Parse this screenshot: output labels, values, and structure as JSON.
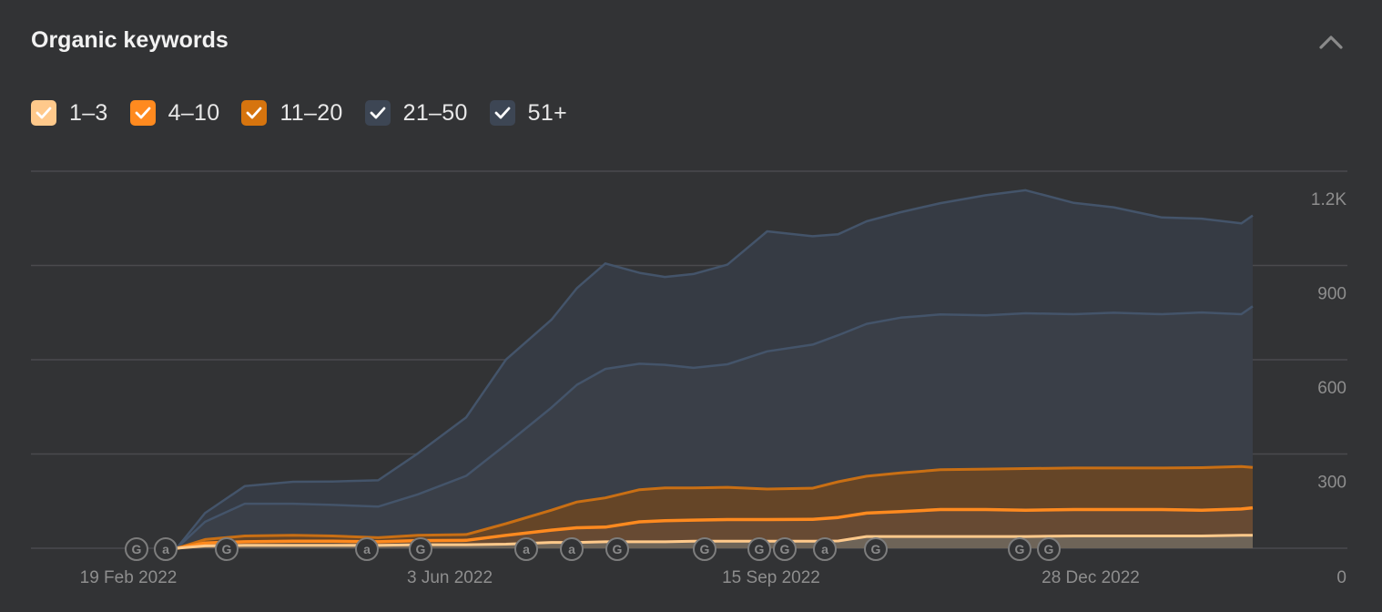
{
  "panel": {
    "title": "Organic keywords",
    "collapse_icon": "chevron-up-icon"
  },
  "legend": [
    {
      "label": "1–3",
      "color": "#ffc98b",
      "checked": true
    },
    {
      "label": "4–10",
      "color": "#ff8a1f",
      "checked": true
    },
    {
      "label": "11–20",
      "color": "#d6740e",
      "checked": true
    },
    {
      "label": "21–50",
      "color": "#3d4654",
      "checked": true
    },
    {
      "label": "51+",
      "color": "#3d4654",
      "checked": true
    }
  ],
  "chart_data": {
    "type": "area",
    "stacked": true,
    "x": [
      "2022-02-19",
      "2022-03-01",
      "2022-03-15",
      "2022-04-01",
      "2022-04-15",
      "2022-05-01",
      "2022-05-15",
      "2022-06-01",
      "2022-06-15",
      "2022-07-01",
      "2022-07-10",
      "2022-07-20",
      "2022-08-01",
      "2022-08-10",
      "2022-08-20",
      "2022-09-01",
      "2022-09-15",
      "2022-10-01",
      "2022-10-10",
      "2022-10-20",
      "2022-11-01",
      "2022-11-15",
      "2022-12-01",
      "2022-12-15",
      "2023-01-01",
      "2023-01-15",
      "2023-02-01",
      "2023-02-15",
      "2023-03-01",
      "2023-03-05"
    ],
    "series": [
      {
        "name": "1–3",
        "color": "#ffc98b",
        "values": [
          0,
          8,
          10,
          10,
          10,
          10,
          12,
          12,
          14,
          20,
          20,
          22,
          22,
          22,
          24,
          24,
          24,
          24,
          25,
          40,
          40,
          40,
          40,
          40,
          42,
          42,
          42,
          42,
          44,
          44
        ]
      },
      {
        "name": "4–10",
        "color": "#ff8a1f",
        "values": [
          0,
          10,
          12,
          14,
          14,
          12,
          14,
          15,
          30,
          42,
          50,
          50,
          68,
          72,
          72,
          74,
          74,
          75,
          80,
          80,
          85,
          92,
          92,
          90,
          90,
          90,
          90,
          88,
          90,
          94
        ]
      },
      {
        "name": "11–20",
        "color": "#d6740e",
        "values": [
          0,
          12,
          20,
          20,
          18,
          14,
          18,
          20,
          40,
          68,
          88,
          100,
          110,
          112,
          110,
          110,
          104,
          106,
          122,
          126,
          132,
          136,
          138,
          142,
          142,
          142,
          142,
          145,
          145,
          138
        ]
      },
      {
        "name": "21–50",
        "color": "#3d4654",
        "values": [
          0,
          60,
          110,
          108,
          106,
          106,
          140,
          200,
          270,
          350,
          400,
          440,
          430,
          420,
          410,
          420,
          470,
          490,
          500,
          520,
          530,
          530,
          525,
          530,
          525,
          530,
          525,
          530,
          520,
          550
        ]
      },
      {
        "name": "51+",
        "color": "#3d4654",
        "values": [
          0,
          30,
          60,
          75,
          80,
          90,
          140,
          200,
          290,
          300,
          330,
          360,
          310,
          300,
          320,
          340,
          410,
          370,
          345,
          350,
          360,
          380,
          410,
          420,
          380,
          360,
          330,
          320,
          310,
          310
        ]
      }
    ],
    "ylim": [
      0,
      1200
    ],
    "yticks": [
      "1.2K",
      "900",
      "600",
      "300",
      "0"
    ],
    "xticks": [
      "19 Feb 2022",
      "3 Jun 2022",
      "15 Sep 2022",
      "28 Dec 2022"
    ],
    "annotations": [
      "G",
      "a",
      "G",
      "a",
      "G",
      "a",
      "a",
      "G",
      "G",
      "G",
      "G",
      "a",
      "G",
      "G",
      "G"
    ],
    "grid": true,
    "legend_position": "top-left"
  }
}
